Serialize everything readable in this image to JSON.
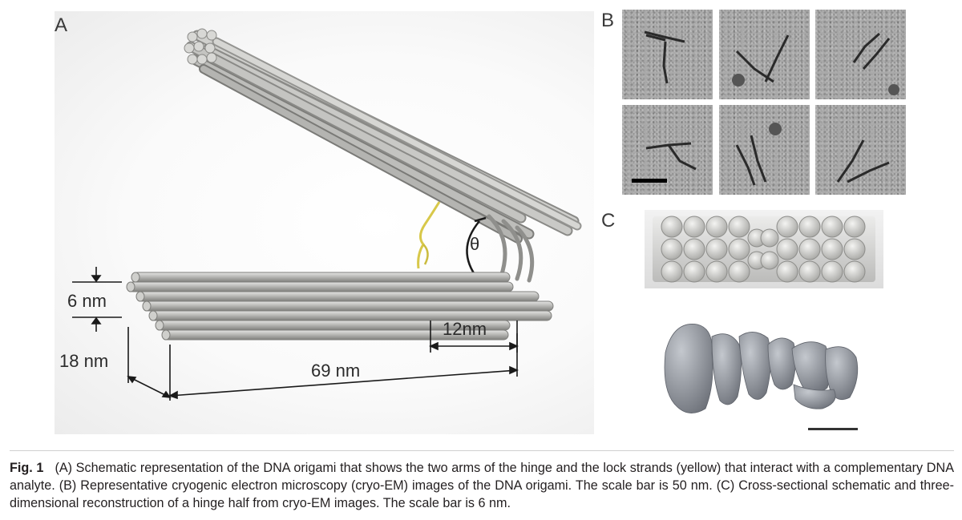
{
  "figure": {
    "panel_a": {
      "letter": "A",
      "theta_symbol": "θ",
      "dim_6nm": "6 nm",
      "dim_18nm": "18 nm",
      "dim_12nm": "12nm",
      "dim_69nm": "69 nm"
    },
    "panel_b": {
      "letter": "B"
    },
    "panel_c": {
      "letter": "C"
    },
    "colors": {
      "rod": "#b7b7b4",
      "rod_dark": "#8a8a87",
      "lock_strand": "#d8c84a",
      "em_bg": "#a9a9a9",
      "density": "#8d9199"
    }
  },
  "caption": {
    "label": "Fig. 1",
    "text": "(A) Schematic representation of the DNA origami that shows the two arms of the hinge and the lock strands (yellow) that interact with a complementary DNA analyte. (B) Representative cryogenic electron microscopy (cryo-EM) images of the DNA origami. The scale bar is 50 nm. (C) Cross-sectional schematic and three-dimensional reconstruction of a hinge half from cryo-EM images. The scale bar is 6 nm."
  }
}
